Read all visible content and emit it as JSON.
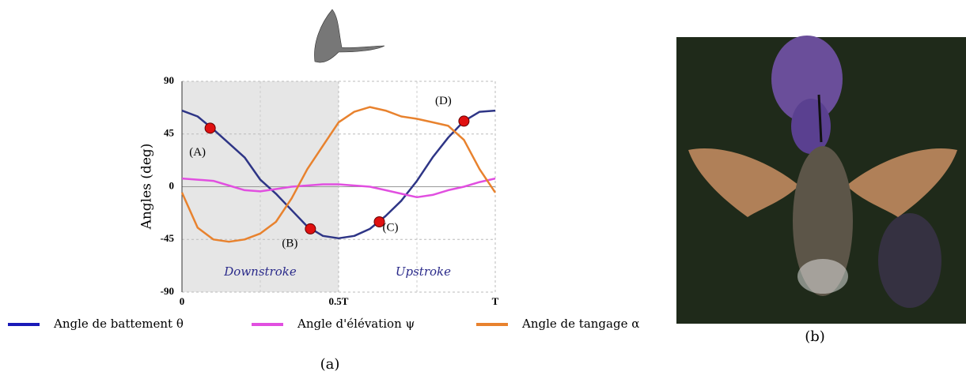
{
  "chart_data": {
    "type": "line",
    "y_label": "Angles (deg)",
    "x": [
      0,
      0.05,
      0.1,
      0.15,
      0.2,
      0.25,
      0.3,
      0.35,
      0.4,
      0.45,
      0.5,
      0.55,
      0.6,
      0.65,
      0.7,
      0.75,
      0.8,
      0.85,
      0.9,
      0.95,
      1
    ],
    "series": [
      {
        "name": "Angle de battement θ",
        "color": "#2e3586",
        "legend_color": "#1a1ab8",
        "values": [
          65,
          60,
          49,
          37,
          25,
          6,
          -6,
          -20,
          -34,
          -42,
          -44,
          -42,
          -36,
          -25,
          -12,
          5,
          25,
          42,
          56,
          64,
          65
        ]
      },
      {
        "name": "Angle d'élévation ψ",
        "color": "#e14fe0",
        "legend_color": "#e14fe0",
        "values": [
          7,
          6,
          5,
          1,
          -3,
          -4,
          -2,
          0,
          1,
          2,
          2,
          1,
          0,
          -3,
          -6,
          -9,
          -7,
          -3,
          0,
          4,
          7
        ]
      },
      {
        "name": "Angle de tangage α",
        "color": "#e8822e",
        "legend_color": "#e8822e",
        "values": [
          -5,
          -35,
          -45,
          -47,
          -45,
          -40,
          -30,
          -10,
          15,
          35,
          55,
          64,
          68,
          65,
          60,
          58,
          55,
          52,
          40,
          15,
          -5
        ]
      }
    ],
    "markers": {
      "color": "#e01010",
      "x": [
        0.09,
        0.41,
        0.63,
        0.9
      ],
      "y": [
        50,
        -36,
        -30,
        56
      ],
      "labels": [
        "(A)",
        "(B)",
        "(C)",
        "(D)"
      ]
    },
    "shaded_xrange": [
      0,
      0.5
    ],
    "annotations": [
      "Downstroke",
      "Upstroke"
    ],
    "xlim": [
      0,
      1
    ],
    "ylim": [
      -90,
      90
    ],
    "xticks": [
      0,
      {
        "value": 0.5,
        "label": "0.5T"
      },
      {
        "value": 1,
        "label": "T"
      }
    ],
    "yticks": [
      -90,
      -45,
      0,
      45,
      90
    ],
    "grid": true,
    "captions": [
      "(a)",
      "(b)"
    ]
  }
}
